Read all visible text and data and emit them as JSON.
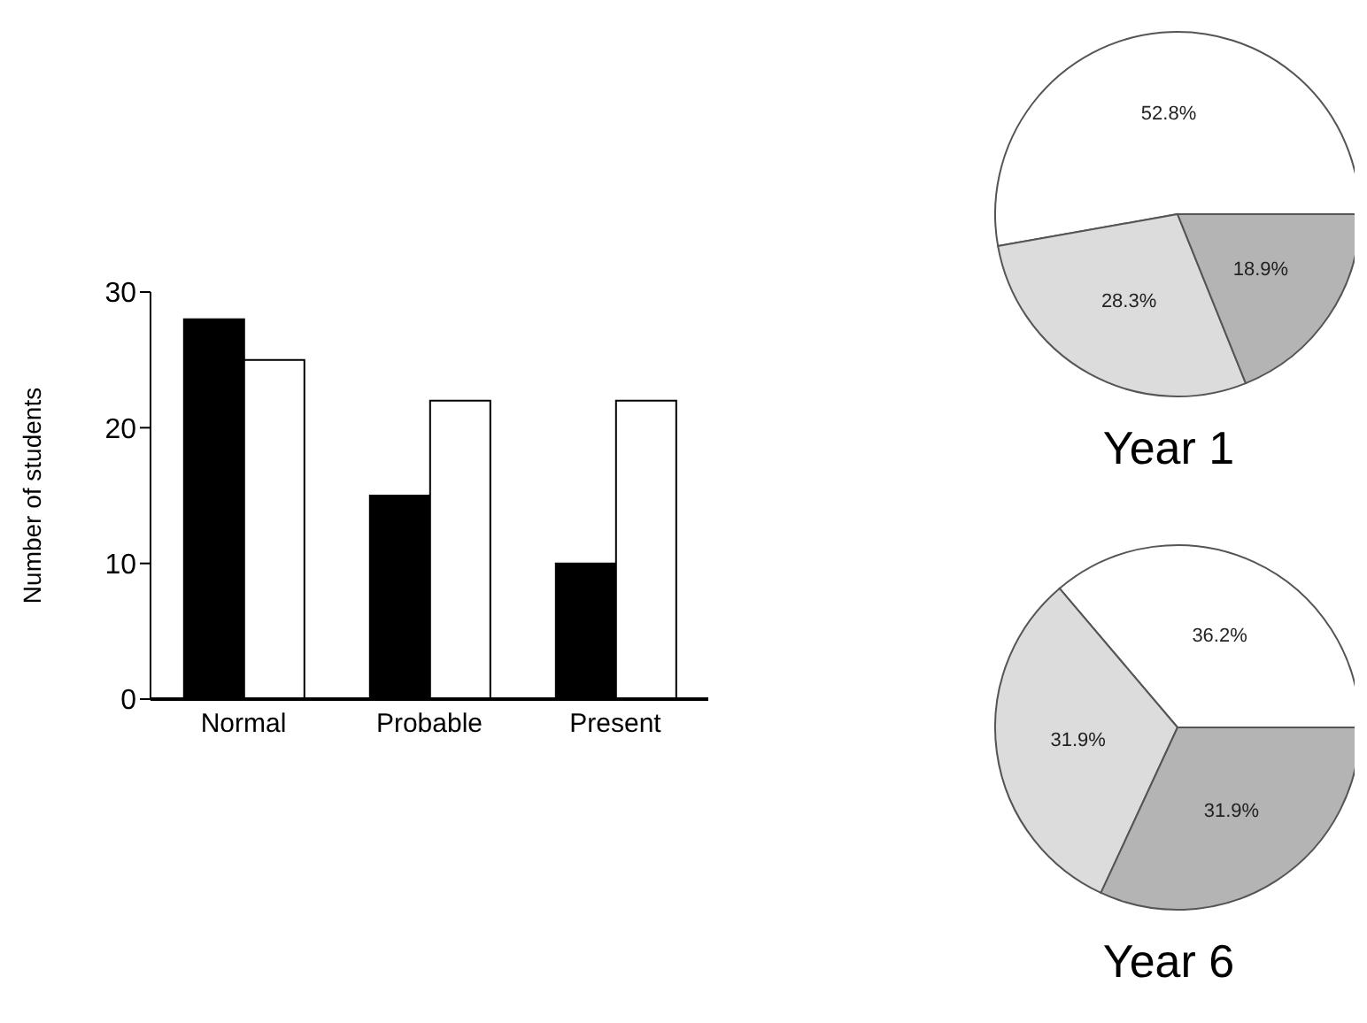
{
  "chart_data": [
    {
      "type": "bar",
      "ylabel": "Number of students",
      "categories": [
        "Normal",
        "Probable",
        "Present"
      ],
      "series": [
        {
          "color": "#000000",
          "values": [
            28,
            15,
            10
          ]
        },
        {
          "color": "#ffffff",
          "values": [
            25,
            22,
            22
          ]
        }
      ],
      "ylim": [
        0,
        30
      ],
      "yticks": [
        0,
        10,
        20,
        30
      ],
      "grid": false,
      "legend": false
    },
    {
      "type": "pie",
      "title": "Year 1",
      "categories": [
        null,
        null,
        null
      ],
      "values": [
        52.8,
        28.3,
        18.9
      ],
      "colors": [
        "#ffffff",
        "#dcdcdc",
        "#b4b4b4"
      ],
      "value_labels": [
        "52.8%",
        "28.3%",
        "18.9%"
      ],
      "legend": false
    },
    {
      "type": "pie",
      "title": "Year 6",
      "categories": [
        null,
        null,
        null
      ],
      "values": [
        36.2,
        31.9,
        31.9
      ],
      "colors": [
        "#ffffff",
        "#dcdcdc",
        "#b4b4b4"
      ],
      "value_labels": [
        "36.2%",
        "31.9%",
        "31.9%"
      ],
      "legend": false
    }
  ]
}
